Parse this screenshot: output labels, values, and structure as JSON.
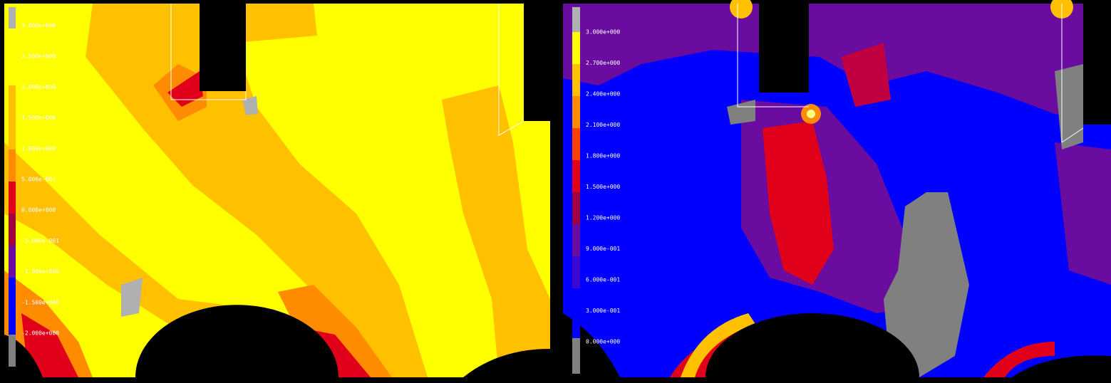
{
  "panels": [
    {
      "legend_labels": [
        "3.000e+000",
        "2.500e+000",
        "2.000e+000",
        "1.500e+000",
        "1.000e+000",
        "5.000e-001",
        "0.000e+000",
        "-5.000e-001",
        "-1.000e+000",
        "-1.500e+000",
        "-2.000e+000"
      ]
    },
    {
      "legend_labels": [
        "3.000e+000",
        "2.700e+000",
        "2.400e+000",
        "2.100e+000",
        "1.800e+000",
        "1.500e+000",
        "1.200e+000",
        "9.000e-001",
        "6.000e-001",
        "3.000e-001",
        "0.000e+000"
      ]
    }
  ]
}
